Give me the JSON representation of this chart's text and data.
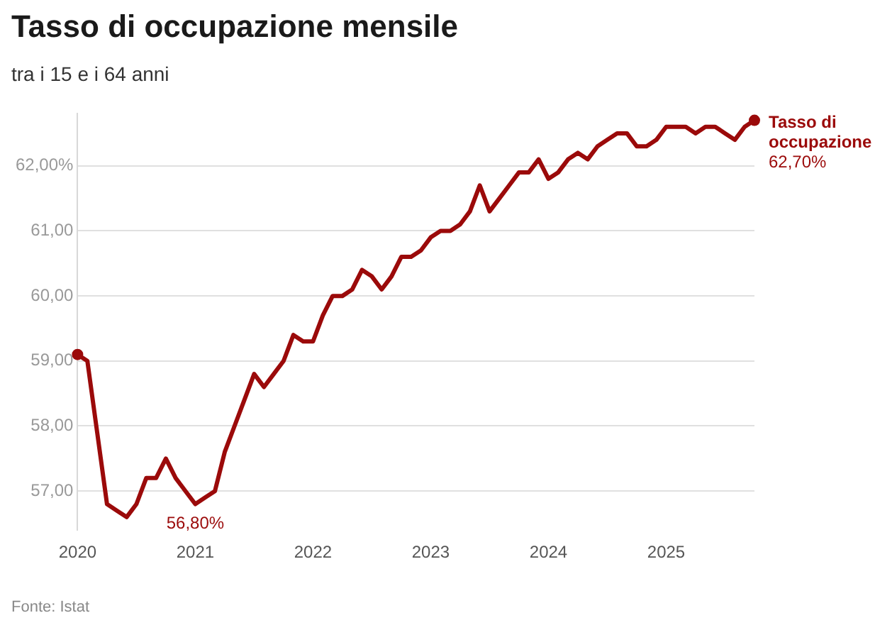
{
  "chart_data": {
    "type": "line",
    "title": "Tasso di occupazione mensile",
    "subtitle": "tra i 15 e i 64 anni",
    "annotations": [
      "Fonte: Istat"
    ],
    "x": [
      "2020-01",
      "2020-02",
      "2020-03",
      "2020-04",
      "2020-05",
      "2020-06",
      "2020-07",
      "2020-08",
      "2020-09",
      "2020-10",
      "2020-11",
      "2020-12",
      "2021-01",
      "2021-02",
      "2021-03",
      "2021-04",
      "2021-05",
      "2021-06",
      "2021-07",
      "2021-08",
      "2021-09",
      "2021-10",
      "2021-11",
      "2021-12",
      "2022-01",
      "2022-02",
      "2022-03",
      "2022-04",
      "2022-05",
      "2022-06",
      "2022-07",
      "2022-08",
      "2022-09",
      "2022-10",
      "2022-11",
      "2022-12",
      "2023-01",
      "2023-02",
      "2023-03",
      "2023-04",
      "2023-05",
      "2023-06",
      "2023-07",
      "2023-08",
      "2023-09",
      "2023-10",
      "2023-11",
      "2023-12",
      "2024-01",
      "2024-02",
      "2024-03",
      "2024-04",
      "2024-05",
      "2024-06",
      "2024-07",
      "2024-08",
      "2024-09",
      "2024-10",
      "2024-11",
      "2024-12",
      "2025-01",
      "2025-02",
      "2025-03",
      "2025-04",
      "2025-05",
      "2025-06",
      "2025-07",
      "2025-08",
      "2025-09",
      "2025-10"
    ],
    "series": [
      {
        "name": "Tasso di occupazione",
        "color": "#9b0a0a",
        "values": [
          59.1,
          59.0,
          57.9,
          56.8,
          56.7,
          56.6,
          56.8,
          57.2,
          57.2,
          57.5,
          57.2,
          57.0,
          56.8,
          56.9,
          57.0,
          57.6,
          58.0,
          58.4,
          58.8,
          58.6,
          58.8,
          59.0,
          59.4,
          59.3,
          59.3,
          59.7,
          60.0,
          60.0,
          60.1,
          60.4,
          60.3,
          60.1,
          60.3,
          60.6,
          60.6,
          60.7,
          60.9,
          61.0,
          61.0,
          61.1,
          61.3,
          61.7,
          61.3,
          61.5,
          61.7,
          61.9,
          61.9,
          62.1,
          61.8,
          61.9,
          62.1,
          62.2,
          62.1,
          62.3,
          62.4,
          62.5,
          62.5,
          62.3,
          62.3,
          62.4,
          62.6,
          62.6,
          62.6,
          62.5,
          62.6,
          62.6,
          62.5,
          62.4,
          62.6,
          62.7
        ],
        "value_labels": [
          null,
          null,
          null,
          null,
          null,
          null,
          null,
          null,
          null,
          null,
          null,
          null,
          "56,80%",
          null,
          null,
          null,
          null,
          null,
          null,
          null,
          null,
          null,
          null,
          null,
          null,
          null,
          null,
          null,
          null,
          null,
          null,
          null,
          null,
          null,
          null,
          null,
          null,
          null,
          null,
          null,
          null,
          null,
          null,
          null,
          null,
          null,
          null,
          null,
          null,
          null,
          null,
          null,
          null,
          null,
          null,
          null,
          null,
          null,
          null,
          null,
          null,
          null,
          null,
          null,
          null,
          null,
          null,
          null,
          null,
          "62,70%"
        ]
      }
    ],
    "xlim": [
      "2020-01",
      "2025-10"
    ],
    "xticks": [
      "2020",
      "2021",
      "2022",
      "2023",
      "2024",
      "2025"
    ],
    "ylim": [
      56.4,
      62.8
    ],
    "yticks": [
      {
        "value": 57,
        "label": "57,00"
      },
      {
        "value": 58,
        "label": "58,00"
      },
      {
        "value": 59,
        "label": "59,00"
      },
      {
        "value": 60,
        "label": "60,00"
      },
      {
        "value": 61,
        "label": "61,00"
      },
      {
        "value": 62,
        "label": "62,00%"
      }
    ],
    "grid": "y",
    "legend": "right",
    "line_style": "solid"
  }
}
